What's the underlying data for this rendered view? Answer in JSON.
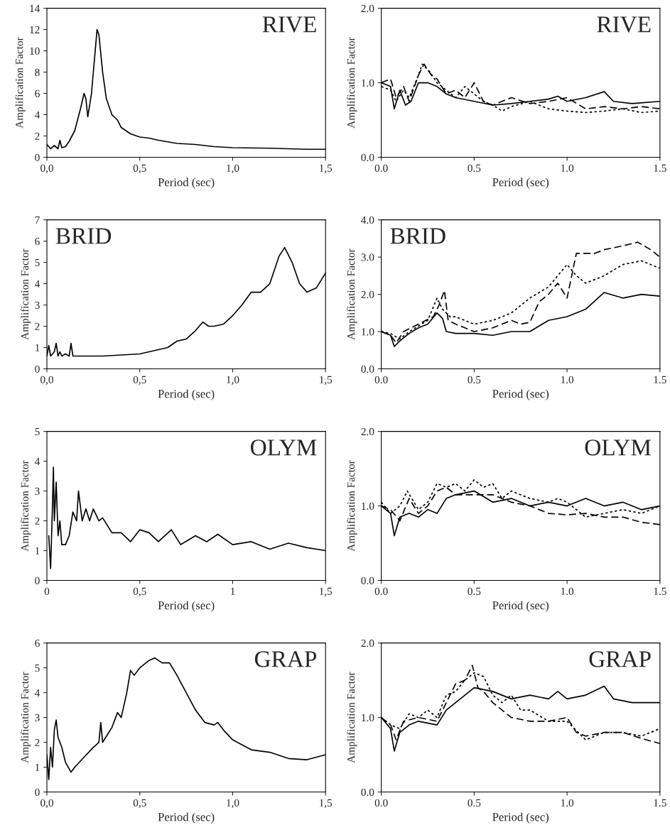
{
  "chart_data": [
    {
      "type": "line",
      "annotations": [
        "RIVE"
      ],
      "xlabel": "Period (sec)",
      "ylabel": "Amplification Factor",
      "xlim": [
        0,
        1.5
      ],
      "ylim": [
        0,
        14
      ],
      "xticks": [
        {
          "value": 0,
          "label": "0,0"
        },
        {
          "value": 0.5,
          "label": "0,5"
        },
        {
          "value": 1,
          "label": "1,0"
        },
        {
          "value": 1.5,
          "label": "1,5"
        }
      ],
      "yticks": [
        0,
        2,
        4,
        6,
        8,
        10,
        12,
        14
      ],
      "series": [
        {
          "color": "#000000",
          "line_style": "solid",
          "x": [
            0,
            0.02,
            0.04,
            0.06,
            0.07,
            0.08,
            0.1,
            0.12,
            0.15,
            0.18,
            0.2,
            0.21,
            0.22,
            0.24,
            0.26,
            0.27,
            0.28,
            0.3,
            0.32,
            0.35,
            0.38,
            0.4,
            0.45,
            0.5,
            0.55,
            0.6,
            0.7,
            0.8,
            0.9,
            1.0,
            1.2,
            1.4,
            1.5
          ],
          "values": [
            1.2,
            0.8,
            1.1,
            0.8,
            1.6,
            0.9,
            1.0,
            1.5,
            2.5,
            4.5,
            6.0,
            5.5,
            3.8,
            6,
            10,
            12.0,
            11.5,
            8,
            5.5,
            4.0,
            3.5,
            2.8,
            2.2,
            1.9,
            1.8,
            1.6,
            1.3,
            1.2,
            1.0,
            0.9,
            0.85,
            0.75,
            0.75
          ]
        }
      ]
    },
    {
      "type": "line",
      "annotations": [
        "RIVE"
      ],
      "xlabel": "Period (sec)",
      "ylabel": "Amplification Factor",
      "xlim": [
        0,
        1.5
      ],
      "ylim": [
        0,
        2
      ],
      "xticks": [
        {
          "value": 0,
          "label": "0.0"
        },
        {
          "value": 0.5,
          "label": "0.5"
        },
        {
          "value": 1,
          "label": "1.0"
        },
        {
          "value": 1.5,
          "label": "1.5"
        }
      ],
      "yticks": [
        {
          "value": 0,
          "label": "0.0"
        },
        {
          "value": 1,
          "label": "1.0"
        },
        {
          "value": 2,
          "label": "2.0"
        }
      ],
      "series": [
        {
          "color": "#000000",
          "line_style": "solid",
          "x": [
            0,
            0.05,
            0.07,
            0.1,
            0.13,
            0.16,
            0.2,
            0.25,
            0.3,
            0.35,
            0.4,
            0.5,
            0.6,
            0.7,
            0.8,
            0.9,
            0.95,
            1.0,
            1.1,
            1.2,
            1.25,
            1.35,
            1.5
          ],
          "values": [
            1.0,
            0.95,
            0.65,
            0.9,
            0.7,
            0.75,
            1.0,
            1.0,
            0.95,
            0.85,
            0.8,
            0.75,
            0.7,
            0.72,
            0.75,
            0.78,
            0.82,
            0.75,
            0.8,
            0.88,
            0.75,
            0.72,
            0.75
          ]
        },
        {
          "color": "#000000",
          "line_style": "dashed",
          "x": [
            0,
            0.05,
            0.08,
            0.12,
            0.15,
            0.2,
            0.23,
            0.27,
            0.3,
            0.35,
            0.4,
            0.45,
            0.5,
            0.55,
            0.6,
            0.7,
            0.8,
            0.9,
            1.0,
            1.1,
            1.2,
            1.3,
            1.4,
            1.5
          ],
          "values": [
            1.0,
            1.05,
            0.8,
            0.95,
            0.75,
            1.1,
            1.25,
            1.1,
            1.05,
            0.85,
            0.9,
            0.8,
            1.0,
            0.75,
            0.7,
            0.8,
            0.72,
            0.75,
            0.8,
            0.65,
            0.68,
            0.65,
            0.68,
            0.65
          ]
        },
        {
          "color": "#000000",
          "line_style": "dotted",
          "x": [
            0,
            0.05,
            0.08,
            0.12,
            0.15,
            0.2,
            0.22,
            0.26,
            0.3,
            0.35,
            0.4,
            0.45,
            0.5,
            0.55,
            0.6,
            0.65,
            0.7,
            0.8,
            0.9,
            1.0,
            1.1,
            1.2,
            1.3,
            1.4,
            1.5
          ],
          "values": [
            0.95,
            0.9,
            0.75,
            0.9,
            0.8,
            1.1,
            1.25,
            1.15,
            1.0,
            0.9,
            0.8,
            0.95,
            0.85,
            0.75,
            0.7,
            0.62,
            0.68,
            0.75,
            0.65,
            0.62,
            0.6,
            0.62,
            0.65,
            0.6,
            0.62
          ]
        }
      ]
    },
    {
      "type": "line",
      "annotations": [
        "BRID"
      ],
      "xlabel": "Period (sec)",
      "ylabel": "Amplification Factor",
      "xlim": [
        0,
        1.5
      ],
      "ylim": [
        0,
        7
      ],
      "xticks": [
        {
          "value": 0,
          "label": "0,0"
        },
        {
          "value": 0.5,
          "label": "0,5"
        },
        {
          "value": 1,
          "label": "1,0"
        },
        {
          "value": 1.5,
          "label": "1,5"
        }
      ],
      "yticks": [
        0,
        1,
        2,
        3,
        4,
        5,
        6,
        7
      ],
      "series": [
        {
          "color": "#000000",
          "line_style": "solid",
          "x": [
            0,
            0.01,
            0.02,
            0.04,
            0.05,
            0.06,
            0.07,
            0.08,
            0.1,
            0.12,
            0.13,
            0.14,
            0.2,
            0.3,
            0.4,
            0.5,
            0.55,
            0.6,
            0.65,
            0.7,
            0.75,
            0.8,
            0.84,
            0.87,
            0.9,
            0.95,
            1.0,
            1.05,
            1.1,
            1.15,
            1.2,
            1.25,
            1.28,
            1.32,
            1.36,
            1.4,
            1.45,
            1.5
          ],
          "values": [
            0.6,
            1.1,
            0.6,
            0.8,
            1.2,
            0.6,
            0.8,
            0.6,
            0.7,
            0.6,
            1.2,
            0.6,
            0.6,
            0.6,
            0.65,
            0.7,
            0.8,
            0.9,
            1.0,
            1.3,
            1.4,
            1.8,
            2.2,
            2.0,
            2.0,
            2.1,
            2.5,
            3.0,
            3.6,
            3.6,
            4.0,
            5.3,
            5.7,
            5.0,
            4.0,
            3.6,
            3.8,
            4.5
          ]
        }
      ]
    },
    {
      "type": "line",
      "annotations": [
        "BRID"
      ],
      "xlabel": "Period (sec)",
      "ylabel": "Amplification Factor",
      "xlim": [
        0,
        1.5
      ],
      "ylim": [
        0,
        4
      ],
      "xticks": [
        {
          "value": 0,
          "label": "0.0"
        },
        {
          "value": 0.5,
          "label": "0.5"
        },
        {
          "value": 1,
          "label": "1.0"
        },
        {
          "value": 1.5,
          "label": "1.5"
        }
      ],
      "yticks": [
        {
          "value": 0,
          "label": "0.0"
        },
        {
          "value": 1,
          "label": "1.0"
        },
        {
          "value": 2,
          "label": "2.0"
        },
        {
          "value": 3,
          "label": "3.0"
        },
        {
          "value": 4,
          "label": "4.0"
        }
      ],
      "series": [
        {
          "color": "#000000",
          "line_style": "solid",
          "x": [
            0,
            0.05,
            0.07,
            0.1,
            0.15,
            0.2,
            0.25,
            0.3,
            0.33,
            0.35,
            0.4,
            0.5,
            0.6,
            0.7,
            0.8,
            0.9,
            1.0,
            1.1,
            1.2,
            1.3,
            1.4,
            1.5
          ],
          "values": [
            1.0,
            0.9,
            0.6,
            0.75,
            0.95,
            1.1,
            1.2,
            1.5,
            1.35,
            1.0,
            0.95,
            0.95,
            0.9,
            1.0,
            1.0,
            1.3,
            1.4,
            1.6,
            2.05,
            1.9,
            2.0,
            1.95
          ]
        },
        {
          "color": "#000000",
          "line_style": "dashed",
          "x": [
            0,
            0.05,
            0.08,
            0.12,
            0.2,
            0.28,
            0.31,
            0.34,
            0.36,
            0.4,
            0.5,
            0.6,
            0.7,
            0.75,
            0.8,
            0.85,
            0.9,
            0.95,
            1.0,
            1.05,
            1.15,
            1.2,
            1.3,
            1.38,
            1.45,
            1.5
          ],
          "values": [
            1.0,
            0.9,
            0.7,
            1.0,
            1.2,
            1.4,
            1.7,
            2.1,
            1.3,
            1.2,
            1.0,
            1.1,
            1.3,
            1.2,
            1.25,
            1.8,
            2.0,
            2.3,
            1.9,
            3.1,
            3.1,
            3.2,
            3.3,
            3.4,
            3.2,
            3.0
          ]
        },
        {
          "color": "#000000",
          "line_style": "dotted",
          "x": [
            0,
            0.05,
            0.1,
            0.15,
            0.2,
            0.25,
            0.3,
            0.33,
            0.37,
            0.4,
            0.5,
            0.6,
            0.7,
            0.8,
            0.9,
            1.0,
            1.05,
            1.1,
            1.2,
            1.3,
            1.4,
            1.5
          ],
          "values": [
            1.0,
            0.95,
            0.8,
            1.0,
            1.15,
            1.3,
            1.9,
            1.6,
            1.4,
            1.4,
            1.2,
            1.3,
            1.5,
            1.9,
            2.2,
            2.8,
            2.5,
            2.3,
            2.5,
            2.8,
            2.9,
            2.7
          ]
        }
      ]
    },
    {
      "type": "line",
      "annotations": [
        "OLYM"
      ],
      "xlabel": "Period (sec)",
      "ylabel": "Amplification Factor",
      "xlim": [
        0,
        1.5
      ],
      "ylim": [
        0,
        5
      ],
      "xticks": [
        0,
        {
          "value": 0.5,
          "label": "0,5"
        },
        1,
        {
          "value": 1.5,
          "label": "1,5"
        }
      ],
      "yticks": [
        0,
        1,
        2,
        3,
        4,
        5
      ],
      "series": [
        {
          "color": "#000000",
          "line_style": "solid",
          "x": [
            0.01,
            0.02,
            0.03,
            0.035,
            0.04,
            0.05,
            0.06,
            0.07,
            0.08,
            0.1,
            0.12,
            0.14,
            0.16,
            0.17,
            0.19,
            0.21,
            0.23,
            0.25,
            0.28,
            0.3,
            0.35,
            0.4,
            0.45,
            0.5,
            0.55,
            0.6,
            0.67,
            0.72,
            0.8,
            0.86,
            0.92,
            1.0,
            1.1,
            1.2,
            1.3,
            1.4,
            1.5
          ],
          "values": [
            1.5,
            0.4,
            2.5,
            3.8,
            2.0,
            3.3,
            1.5,
            2.0,
            1.2,
            1.2,
            1.5,
            2.3,
            2.0,
            3.0,
            2.0,
            2.4,
            2.0,
            2.4,
            2.0,
            2.1,
            1.6,
            1.6,
            1.3,
            1.7,
            1.6,
            1.3,
            1.7,
            1.2,
            1.5,
            1.3,
            1.55,
            1.2,
            1.3,
            1.05,
            1.25,
            1.1,
            1.0
          ]
        }
      ]
    },
    {
      "type": "line",
      "annotations": [
        "OLYM"
      ],
      "xlabel": "Period (sec)",
      "ylabel": "Amplification Factor",
      "xlim": [
        0,
        1.5
      ],
      "ylim": [
        0,
        2
      ],
      "xticks": [
        {
          "value": 0,
          "label": "0.0"
        },
        {
          "value": 0.5,
          "label": "0.5"
        },
        {
          "value": 1,
          "label": "1.0"
        },
        {
          "value": 1.5,
          "label": "1.5"
        }
      ],
      "yticks": [
        {
          "value": 0,
          "label": "0.0"
        },
        {
          "value": 1,
          "label": "1.0"
        },
        {
          "value": 2,
          "label": "2.0"
        }
      ],
      "series": [
        {
          "color": "#000000",
          "line_style": "solid",
          "x": [
            0,
            0.05,
            0.07,
            0.1,
            0.15,
            0.2,
            0.25,
            0.3,
            0.35,
            0.4,
            0.5,
            0.6,
            0.7,
            0.8,
            0.9,
            1.0,
            1.1,
            1.2,
            1.3,
            1.4,
            1.5
          ],
          "values": [
            1.0,
            0.9,
            0.6,
            0.85,
            0.9,
            0.85,
            0.95,
            0.9,
            1.1,
            1.15,
            1.2,
            1.05,
            1.1,
            1.0,
            1.05,
            1.0,
            1.1,
            1.0,
            1.05,
            0.95,
            1.0
          ]
        },
        {
          "color": "#000000",
          "line_style": "dashed",
          "x": [
            0,
            0.05,
            0.1,
            0.15,
            0.2,
            0.25,
            0.3,
            0.35,
            0.4,
            0.5,
            0.6,
            0.7,
            0.8,
            0.9,
            1.0,
            1.1,
            1.2,
            1.3,
            1.4,
            1.5
          ],
          "values": [
            1.0,
            0.95,
            0.8,
            1.1,
            0.9,
            1.0,
            1.2,
            1.25,
            1.15,
            1.15,
            1.15,
            1.05,
            1.0,
            0.9,
            0.88,
            0.9,
            0.85,
            0.85,
            0.78,
            0.75
          ]
        },
        {
          "color": "#000000",
          "line_style": "dotted",
          "x": [
            0,
            0.05,
            0.1,
            0.14,
            0.2,
            0.25,
            0.3,
            0.35,
            0.4,
            0.45,
            0.5,
            0.55,
            0.6,
            0.65,
            0.7,
            0.8,
            0.9,
            0.95,
            1.0,
            1.1,
            1.2,
            1.3,
            1.4,
            1.5
          ],
          "values": [
            1.05,
            0.9,
            1.0,
            1.2,
            0.95,
            1.05,
            1.3,
            1.25,
            1.3,
            1.2,
            1.35,
            1.25,
            1.3,
            1.1,
            1.2,
            1.1,
            1.05,
            1.1,
            1.05,
            0.85,
            0.9,
            0.95,
            0.9,
            1.0
          ]
        }
      ]
    },
    {
      "type": "line",
      "annotations": [
        "GRAP"
      ],
      "xlabel": "Period (sec)",
      "ylabel": "Amplification Factor",
      "xlim": [
        0,
        1.5
      ],
      "ylim": [
        0,
        6
      ],
      "xticks": [
        {
          "value": 0,
          "label": "0,0"
        },
        {
          "value": 0.5,
          "label": "0,5"
        },
        {
          "value": 1,
          "label": "1,0"
        },
        {
          "value": 1.5,
          "label": "1,5"
        }
      ],
      "yticks": [
        0,
        1,
        2,
        3,
        4,
        5,
        6
      ],
      "series": [
        {
          "color": "#000000",
          "line_style": "solid",
          "x": [
            0,
            0.01,
            0.02,
            0.03,
            0.04,
            0.05,
            0.06,
            0.08,
            0.1,
            0.13,
            0.15,
            0.2,
            0.25,
            0.28,
            0.29,
            0.3,
            0.35,
            0.38,
            0.4,
            0.43,
            0.45,
            0.47,
            0.5,
            0.55,
            0.58,
            0.62,
            0.66,
            0.7,
            0.75,
            0.8,
            0.85,
            0.9,
            0.92,
            0.95,
            1.0,
            1.1,
            1.2,
            1.3,
            1.4,
            1.5
          ],
          "values": [
            1.5,
            0.5,
            1.8,
            1.0,
            2.5,
            2.9,
            2.2,
            1.8,
            1.2,
            0.8,
            1.0,
            1.4,
            1.8,
            2.0,
            2.8,
            2.0,
            2.6,
            3.2,
            3.0,
            4.0,
            4.9,
            4.7,
            5.0,
            5.3,
            5.4,
            5.2,
            5.2,
            4.7,
            4.0,
            3.3,
            2.8,
            2.7,
            2.8,
            2.5,
            2.1,
            1.7,
            1.6,
            1.35,
            1.3,
            1.5
          ]
        }
      ]
    },
    {
      "type": "line",
      "annotations": [
        "GRAP"
      ],
      "xlabel": "Period (sec)",
      "ylabel": "Amplification Factor",
      "xlim": [
        0,
        1.5
      ],
      "ylim": [
        0,
        2
      ],
      "xticks": [
        {
          "value": 0,
          "label": "0.0"
        },
        {
          "value": 0.5,
          "label": "0.5"
        },
        {
          "value": 1,
          "label": "1.0"
        },
        {
          "value": 1.5,
          "label": "1.5"
        }
      ],
      "yticks": [
        {
          "value": 0,
          "label": "0.0"
        },
        {
          "value": 1,
          "label": "1.0"
        },
        {
          "value": 2,
          "label": "2.0"
        }
      ],
      "series": [
        {
          "color": "#000000",
          "line_style": "solid",
          "x": [
            0,
            0.05,
            0.07,
            0.1,
            0.15,
            0.2,
            0.3,
            0.35,
            0.4,
            0.45,
            0.5,
            0.6,
            0.7,
            0.8,
            0.9,
            0.95,
            1.0,
            1.1,
            1.2,
            1.25,
            1.35,
            1.5
          ],
          "values": [
            1.0,
            0.85,
            0.55,
            0.8,
            0.9,
            0.95,
            0.9,
            1.1,
            1.2,
            1.3,
            1.4,
            1.35,
            1.25,
            1.3,
            1.25,
            1.35,
            1.25,
            1.3,
            1.42,
            1.25,
            1.2,
            1.2
          ]
        },
        {
          "color": "#000000",
          "line_style": "dashed",
          "x": [
            0,
            0.05,
            0.08,
            0.12,
            0.2,
            0.3,
            0.35,
            0.4,
            0.45,
            0.49,
            0.52,
            0.55,
            0.6,
            0.7,
            0.8,
            0.9,
            1.0,
            1.05,
            1.1,
            1.2,
            1.3,
            1.4,
            1.5
          ],
          "values": [
            1.0,
            0.9,
            0.7,
            0.95,
            1.0,
            0.95,
            1.2,
            1.45,
            1.5,
            1.7,
            1.4,
            1.35,
            1.2,
            1.0,
            0.95,
            0.95,
            1.0,
            0.8,
            0.75,
            0.8,
            0.8,
            0.72,
            0.65
          ]
        },
        {
          "color": "#000000",
          "line_style": "dotted",
          "x": [
            0,
            0.05,
            0.1,
            0.15,
            0.2,
            0.25,
            0.3,
            0.35,
            0.4,
            0.45,
            0.5,
            0.55,
            0.6,
            0.65,
            0.7,
            0.75,
            0.8,
            0.9,
            1.0,
            1.1,
            1.2,
            1.3,
            1.4,
            1.5
          ],
          "values": [
            1.0,
            0.9,
            0.85,
            1.05,
            1.0,
            1.1,
            1.0,
            1.3,
            1.35,
            1.5,
            1.6,
            1.55,
            1.3,
            1.2,
            1.3,
            1.1,
            1.1,
            0.95,
            0.95,
            0.7,
            0.8,
            0.8,
            0.75,
            0.85
          ]
        }
      ]
    }
  ]
}
